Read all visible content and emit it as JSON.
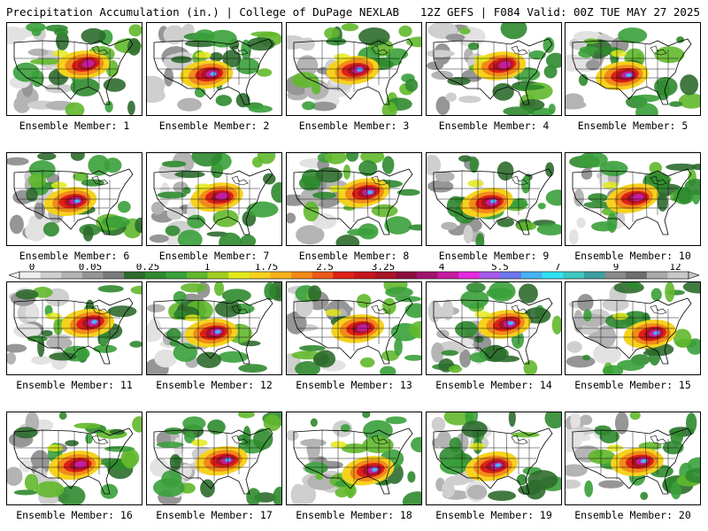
{
  "header": {
    "left_title": "Precipitation Accumulation (in.) | College of DuPage NEXLAB",
    "right_title": "12Z GEFS | F084 Valid: 00Z TUE MAY 27 2025"
  },
  "panels": [
    {
      "label": "Ensemble Member: 1"
    },
    {
      "label": "Ensemble Member: 2"
    },
    {
      "label": "Ensemble Member: 3"
    },
    {
      "label": "Ensemble Member: 4"
    },
    {
      "label": "Ensemble Member: 5"
    },
    {
      "label": "Ensemble Member: 6"
    },
    {
      "label": "Ensemble Member: 7"
    },
    {
      "label": "Ensemble Member: 8"
    },
    {
      "label": "Ensemble Member: 9"
    },
    {
      "label": "Ensemble Member: 10"
    },
    {
      "label": "Ensemble Member: 11"
    },
    {
      "label": "Ensemble Member: 12"
    },
    {
      "label": "Ensemble Member: 13"
    },
    {
      "label": "Ensemble Member: 14"
    },
    {
      "label": "Ensemble Member: 15"
    },
    {
      "label": "Ensemble Member: 16"
    },
    {
      "label": "Ensemble Member: 17"
    },
    {
      "label": "Ensemble Member: 18"
    },
    {
      "label": "Ensemble Member: 19"
    },
    {
      "label": "Ensemble Member: 20"
    }
  ],
  "colorbar": {
    "tick_labels": [
      "0",
      "0.05",
      "0.25",
      "1",
      "1.75",
      "2.5",
      "3.25",
      "4",
      "5.5",
      "7",
      "9",
      "12"
    ],
    "colors": [
      "#eeeeee",
      "#cfcfcf",
      "#b4b4b4",
      "#969696",
      "#7a7a7a",
      "#2e6b2e",
      "#2f8a2f",
      "#3aa03a",
      "#62b82c",
      "#a2cf22",
      "#e4ea1c",
      "#f6d21e",
      "#f6b21c",
      "#f28a1a",
      "#ec5a18",
      "#e02018",
      "#c8141c",
      "#a81424",
      "#8c0e3c",
      "#a0146e",
      "#c61ca0",
      "#e42ae0",
      "#a65aea",
      "#6e78ee",
      "#46b4f2",
      "#2ee2f4",
      "#3ec8c0",
      "#3ca0a0",
      "#8a8a8a",
      "#6e6e6e",
      "#a8a8a8",
      "#c8c8c8"
    ]
  }
}
